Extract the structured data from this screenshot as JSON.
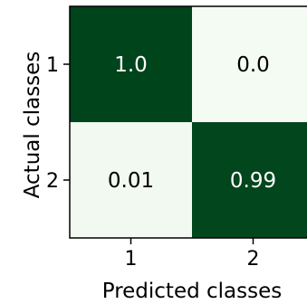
{
  "chart_data": {
    "type": "heatmap",
    "xlabel": "Predicted classes",
    "ylabel": "Actual classes",
    "x_categories": [
      "1",
      "2"
    ],
    "y_categories": [
      "1",
      "2"
    ],
    "values": [
      [
        1.0,
        0.0
      ],
      [
        0.01,
        0.99
      ]
    ],
    "value_labels": [
      [
        "1.0",
        "0.0"
      ],
      [
        "0.01",
        "0.99"
      ]
    ],
    "color_range": [
      0,
      1
    ],
    "colors": {
      "low": "#f4fbf2",
      "high": "#00441b",
      "text_on_dark": "#ffffff",
      "text_on_light": "#000000"
    },
    "grid": false
  }
}
